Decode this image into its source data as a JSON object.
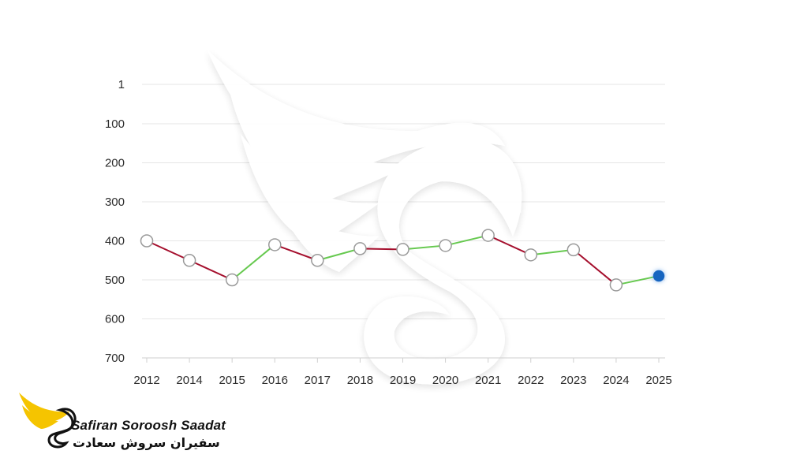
{
  "chart_data": {
    "type": "line",
    "title": "",
    "xlabel": "",
    "ylabel": "",
    "y_axis_inverted": true,
    "ylim": [
      1,
      700
    ],
    "y_ticks": [
      1,
      100,
      200,
      300,
      400,
      500,
      600,
      700
    ],
    "grid": true,
    "categories": [
      "2012",
      "2014",
      "2015",
      "2016",
      "2017",
      "2018",
      "2019",
      "2020",
      "2021",
      "2022",
      "2023",
      "2024",
      "2025"
    ],
    "values": [
      400,
      450,
      500,
      410,
      450,
      420,
      422,
      412,
      386,
      436,
      423,
      513,
      490
    ],
    "colors": {
      "rank_worsened": "#a50f2d",
      "rank_improved": "#66c94f",
      "marker_fill": "#ffffff",
      "marker_stroke": "#9a9a9a",
      "latest_marker": "#1565c0",
      "gridline": "#e6e6e6"
    }
  },
  "logo": {
    "title": "Safiran Soroosh Saadat",
    "subtitle": "سفیران سروش سعادت",
    "wing_color": "#f5c400"
  }
}
